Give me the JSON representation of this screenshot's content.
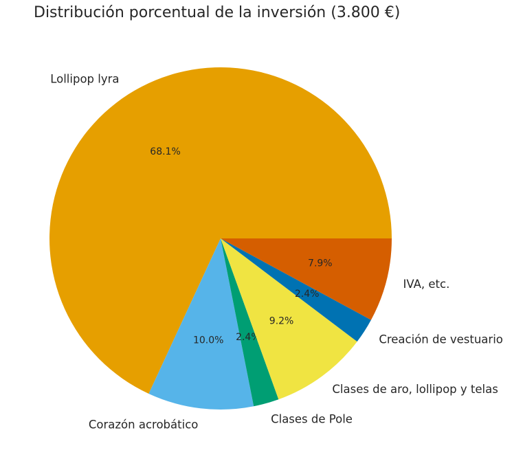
{
  "chart_data": {
    "type": "pie",
    "title": "Distribución porcentual de la inversión (3.800 €)",
    "start_angle": 0,
    "direction": "counterclockwise",
    "slices": [
      {
        "label": "Lollipop lyra",
        "percent": 68.1,
        "pct_label": "68.1%",
        "color": "#E69F00"
      },
      {
        "label": "Corazón acrobático",
        "percent": 10.0,
        "pct_label": "10.0%",
        "color": "#56B4E9"
      },
      {
        "label": "Clases de Pole",
        "percent": 2.4,
        "pct_label": "2.4%",
        "color": "#009E73"
      },
      {
        "label": "Clases de aro, lollipop y telas",
        "percent": 9.2,
        "pct_label": "9.2%",
        "color": "#F0E442"
      },
      {
        "label": "Creación de vestuario",
        "percent": 2.4,
        "pct_label": "2.4%",
        "color": "#0072B2"
      },
      {
        "label": "IVA, etc.",
        "percent": 7.9,
        "pct_label": "7.9%",
        "color": "#D55E00"
      }
    ],
    "total": "3.800 €"
  }
}
